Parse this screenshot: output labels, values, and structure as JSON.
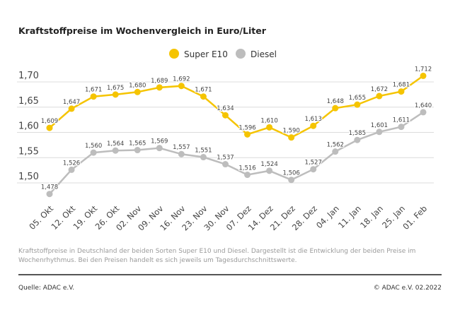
{
  "chart_data": {
    "type": "line",
    "title": "Kraftstoffpreise im Wochenvergleich in Euro/Liter",
    "categories": [
      "05. Okt",
      "12. Okt",
      "19. Okt",
      "26. Okt",
      "02. Nov",
      "09. Nov",
      "16. Nov",
      "23. Nov",
      "30. Nov",
      "07. Dez",
      "14. Dez",
      "21. Dez",
      "28. Dez",
      "04. Jan",
      "11. Jan",
      "18. Jan",
      "25. Jan",
      "01. Feb"
    ],
    "series": [
      {
        "name": "Super E10",
        "color": "#f5c400",
        "values": [
          1.609,
          1.647,
          1.671,
          1.675,
          1.68,
          1.689,
          1.692,
          1.671,
          1.634,
          1.596,
          1.61,
          1.59,
          1.613,
          1.648,
          1.655,
          1.672,
          1.681,
          1.712
        ]
      },
      {
        "name": "Diesel",
        "color": "#bdbdbd",
        "values": [
          1.478,
          1.526,
          1.56,
          1.564,
          1.565,
          1.569,
          1.557,
          1.551,
          1.537,
          1.516,
          1.524,
          1.506,
          1.527,
          1.562,
          1.585,
          1.601,
          1.611,
          1.64
        ]
      }
    ],
    "yticks": [
      "1,70",
      "1,65",
      "1,60",
      "1,55",
      "1,50"
    ],
    "ytick_values": [
      1.7,
      1.65,
      1.6,
      1.55,
      1.5
    ],
    "ylim": [
      1.45,
      1.72
    ],
    "grid": true,
    "legend_placement": "top-center",
    "decimal_separator": ","
  },
  "caption": "Kraftstoffpreise in Deutschland der beiden Sorten Super E10 und Diesel. Dargestellt ist die Entwicklung der beiden Preise im Wochenrhythmus. Bei den Preisen handelt es sich jeweils um Tagesdurchschnittswerte.",
  "footer": {
    "source": "Quelle: ADAC e.V.",
    "copyright": "© ADAC e.V. 02.2022"
  }
}
